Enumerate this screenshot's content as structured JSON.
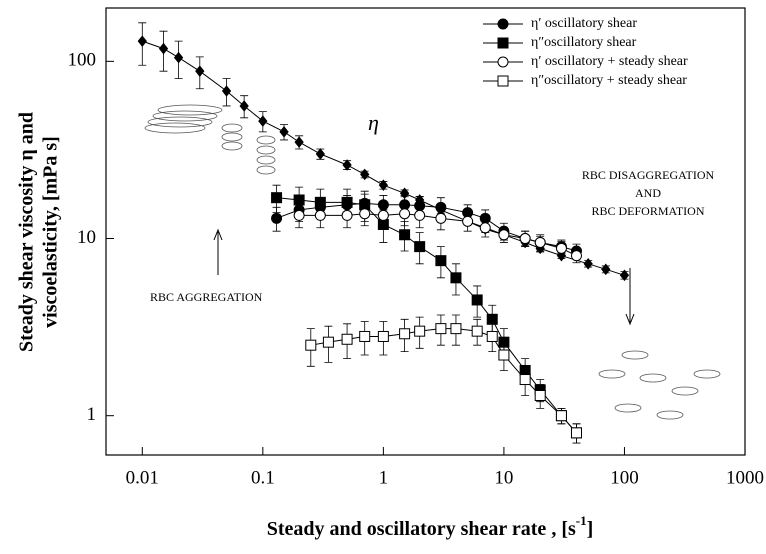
{
  "chart_data": {
    "type": "line",
    "xscale": "log",
    "yscale": "log",
    "xlabel": "Steady and oscillatory shear rate ,  [s",
    "xlabel_sup": "-1",
    "xlabel_end": "]",
    "ylabel": [
      "Steady shear viscosity η  and",
      "viscoelasticity,  [mPa s]"
    ],
    "xlim": [
      0.005,
      1000
    ],
    "xticks": [
      0.01,
      0.1,
      1,
      10,
      100,
      1000
    ],
    "ylim": [
      0.6,
      200
    ],
    "yticks": [
      1,
      10,
      100
    ],
    "legend": "upper right",
    "annotations": {
      "eta": "η",
      "aggregation": "RBC AGGREGATION",
      "disaggregation": [
        "RBC DISAGGREGATION",
        "AND",
        "RBC DEFORMATION"
      ]
    },
    "series": [
      {
        "marker": "diamond",
        "filled": true,
        "color": "#000000",
        "x": [
          0.01,
          0.015,
          0.02,
          0.03,
          0.05,
          0.07,
          0.1,
          0.15,
          0.2,
          0.3,
          0.5,
          0.7,
          1,
          1.5,
          2,
          3,
          5,
          7,
          10,
          15,
          20,
          30,
          50,
          70,
          100
        ],
        "values": [
          130,
          118,
          105,
          88,
          68,
          56,
          46,
          40,
          35,
          30,
          26,
          23,
          20,
          18,
          16.5,
          14.5,
          12.5,
          11.3,
          10.5,
          9.5,
          8.8,
          8,
          7.2,
          6.7,
          6.2
        ],
        "errors": [
          35,
          30,
          25,
          18,
          12,
          8,
          6,
          4,
          3,
          2,
          1.5,
          1,
          1,
          0.8,
          0.7,
          0.6,
          0.5,
          0.5,
          0.5,
          0.4,
          0.4,
          0.3,
          0.3,
          0.3,
          0.3
        ]
      },
      {
        "name": "η′ oscillatory shear",
        "marker": "circle",
        "filled": true,
        "color": "#000000",
        "x": [
          0.13,
          0.2,
          0.3,
          0.5,
          0.7,
          1,
          1.5,
          2,
          3,
          5,
          7,
          10,
          15,
          20,
          30,
          40
        ],
        "values": [
          13,
          14.5,
          15,
          15.5,
          15.8,
          15.5,
          15.5,
          15.3,
          15,
          14,
          13,
          11,
          10,
          9.5,
          9,
          8.5
        ],
        "errors": [
          2,
          2,
          2,
          2,
          2,
          2,
          2,
          2,
          2,
          1.5,
          1.5,
          1.2,
          1,
          1,
          0.8,
          0.8
        ]
      },
      {
        "name": "η″oscillatory shear",
        "marker": "square",
        "filled": true,
        "color": "#000000",
        "x": [
          0.13,
          0.2,
          0.3,
          0.5,
          0.7,
          1,
          1.5,
          2,
          3,
          4,
          6,
          8,
          10,
          15,
          20,
          30,
          40
        ],
        "values": [
          17,
          16.5,
          16,
          16,
          15.5,
          12,
          10.5,
          9,
          7.5,
          6,
          4.5,
          3.5,
          2.6,
          1.8,
          1.4,
          1,
          0.8
        ],
        "errors": [
          3,
          3,
          3,
          3,
          3,
          2.5,
          2,
          1.8,
          1.5,
          1.2,
          0.9,
          0.7,
          0.5,
          0.3,
          0.2,
          0.1,
          0.1
        ]
      },
      {
        "name": "η′ oscillatory + steady shear",
        "marker": "circle",
        "filled": false,
        "color": "#000000",
        "x": [
          0.2,
          0.3,
          0.5,
          0.7,
          1,
          1.5,
          2,
          3,
          5,
          7,
          10,
          15,
          20,
          30,
          40
        ],
        "values": [
          13.5,
          13.5,
          13.5,
          13.8,
          13.5,
          13.8,
          13.5,
          13,
          12.5,
          11.5,
          10.5,
          10,
          9.5,
          8.8,
          8
        ],
        "errors": [
          2,
          2,
          2,
          2,
          2,
          2,
          2,
          1.8,
          1.5,
          1.3,
          1,
          1,
          0.8,
          0.8,
          0.7
        ]
      },
      {
        "name": "η″oscillatory + steady shear",
        "marker": "square",
        "filled": false,
        "color": "#000000",
        "x": [
          0.25,
          0.35,
          0.5,
          0.7,
          1,
          1.5,
          2,
          3,
          4,
          6,
          8,
          10,
          15,
          20,
          30,
          40
        ],
        "values": [
          2.5,
          2.6,
          2.7,
          2.8,
          2.8,
          2.9,
          3,
          3.1,
          3.1,
          3,
          2.8,
          2.2,
          1.6,
          1.3,
          1,
          0.8
        ],
        "errors": [
          0.6,
          0.6,
          0.6,
          0.6,
          0.6,
          0.6,
          0.6,
          0.6,
          0.6,
          0.5,
          0.5,
          0.4,
          0.3,
          0.2,
          0.1,
          0.1
        ]
      }
    ]
  }
}
